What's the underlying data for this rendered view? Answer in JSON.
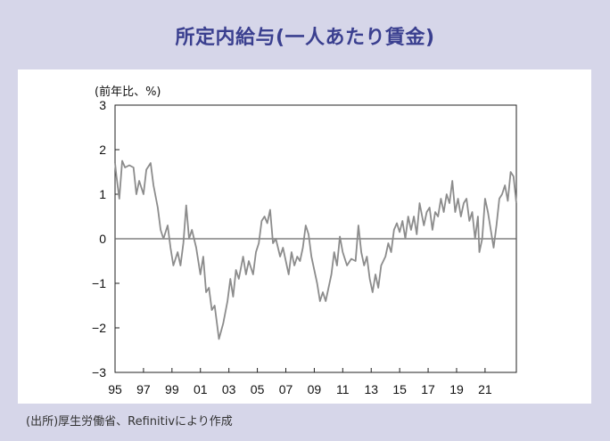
{
  "title": "所定内給与(一人あたり賃金)",
  "source": "(出所)厚生労働省、Refinitivにより作成",
  "chart_data": {
    "type": "line",
    "ylabel": "(前年比、%)",
    "ylim": [
      -3,
      3
    ],
    "yticks": [
      "3",
      "2",
      "1",
      "0",
      "-1",
      "-2",
      "-3"
    ],
    "xlim": [
      1995.0,
      2023.2
    ],
    "xtick_labels": [
      "95",
      "97",
      "99",
      "01",
      "03",
      "05",
      "07",
      "09",
      "11",
      "13",
      "15",
      "17",
      "19",
      "21"
    ],
    "grid": false,
    "zero_line": true,
    "series": [
      {
        "color": "#8c8c8c",
        "points": [
          [
            1995.0,
            1.7
          ],
          [
            1995.1,
            1.4
          ],
          [
            1995.3,
            0.9
          ],
          [
            1995.5,
            1.75
          ],
          [
            1995.7,
            1.6
          ],
          [
            1996.0,
            1.65
          ],
          [
            1996.3,
            1.6
          ],
          [
            1996.5,
            1.0
          ],
          [
            1996.7,
            1.3
          ],
          [
            1997.0,
            1.0
          ],
          [
            1997.2,
            1.55
          ],
          [
            1997.5,
            1.7
          ],
          [
            1997.7,
            1.2
          ],
          [
            1998.0,
            0.7
          ],
          [
            1998.2,
            0.2
          ],
          [
            1998.4,
            0.0
          ],
          [
            1998.7,
            0.3
          ],
          [
            1998.9,
            -0.2
          ],
          [
            1999.1,
            -0.6
          ],
          [
            1999.4,
            -0.3
          ],
          [
            1999.6,
            -0.6
          ],
          [
            1999.8,
            -0.1
          ],
          [
            2000.0,
            0.75
          ],
          [
            2000.2,
            0.0
          ],
          [
            2000.4,
            0.2
          ],
          [
            2000.7,
            -0.2
          ],
          [
            2001.0,
            -0.8
          ],
          [
            2001.2,
            -0.4
          ],
          [
            2001.4,
            -1.2
          ],
          [
            2001.6,
            -1.1
          ],
          [
            2001.8,
            -1.6
          ],
          [
            2002.0,
            -1.5
          ],
          [
            2002.3,
            -2.25
          ],
          [
            2002.6,
            -1.9
          ],
          [
            2002.9,
            -1.4
          ],
          [
            2003.1,
            -0.9
          ],
          [
            2003.3,
            -1.3
          ],
          [
            2003.5,
            -0.7
          ],
          [
            2003.7,
            -0.9
          ],
          [
            2004.0,
            -0.4
          ],
          [
            2004.2,
            -0.8
          ],
          [
            2004.4,
            -0.5
          ],
          [
            2004.7,
            -0.8
          ],
          [
            2004.9,
            -0.3
          ],
          [
            2005.1,
            -0.1
          ],
          [
            2005.3,
            0.4
          ],
          [
            2005.5,
            0.5
          ],
          [
            2005.7,
            0.35
          ],
          [
            2005.9,
            0.65
          ],
          [
            2006.1,
            -0.1
          ],
          [
            2006.3,
            0.0
          ],
          [
            2006.6,
            -0.4
          ],
          [
            2006.8,
            -0.2
          ],
          [
            2007.0,
            -0.5
          ],
          [
            2007.2,
            -0.8
          ],
          [
            2007.4,
            -0.3
          ],
          [
            2007.6,
            -0.6
          ],
          [
            2007.8,
            -0.4
          ],
          [
            2008.0,
            -0.5
          ],
          [
            2008.2,
            -0.2
          ],
          [
            2008.4,
            0.3
          ],
          [
            2008.6,
            0.1
          ],
          [
            2008.8,
            -0.4
          ],
          [
            2009.0,
            -0.7
          ],
          [
            2009.2,
            -1.0
          ],
          [
            2009.4,
            -1.4
          ],
          [
            2009.6,
            -1.2
          ],
          [
            2009.8,
            -1.4
          ],
          [
            2010.0,
            -1.1
          ],
          [
            2010.2,
            -0.8
          ],
          [
            2010.4,
            -0.3
          ],
          [
            2010.6,
            -0.6
          ],
          [
            2010.8,
            0.05
          ],
          [
            2011.0,
            -0.3
          ],
          [
            2011.3,
            -0.6
          ],
          [
            2011.6,
            -0.45
          ],
          [
            2011.9,
            -0.5
          ],
          [
            2012.1,
            0.3
          ],
          [
            2012.3,
            -0.3
          ],
          [
            2012.5,
            -0.6
          ],
          [
            2012.7,
            -0.4
          ],
          [
            2012.9,
            -0.9
          ],
          [
            2013.1,
            -1.2
          ],
          [
            2013.3,
            -0.8
          ],
          [
            2013.5,
            -1.1
          ],
          [
            2013.7,
            -0.6
          ],
          [
            2014.0,
            -0.4
          ],
          [
            2014.2,
            -0.1
          ],
          [
            2014.4,
            -0.3
          ],
          [
            2014.6,
            0.2
          ],
          [
            2014.8,
            0.35
          ],
          [
            2015.0,
            0.15
          ],
          [
            2015.2,
            0.4
          ],
          [
            2015.4,
            0.0
          ],
          [
            2015.6,
            0.5
          ],
          [
            2015.8,
            0.2
          ],
          [
            2016.0,
            0.5
          ],
          [
            2016.2,
            0.1
          ],
          [
            2016.4,
            0.8
          ],
          [
            2016.7,
            0.3
          ],
          [
            2016.9,
            0.6
          ],
          [
            2017.1,
            0.7
          ],
          [
            2017.3,
            0.2
          ],
          [
            2017.5,
            0.6
          ],
          [
            2017.7,
            0.5
          ],
          [
            2017.9,
            0.9
          ],
          [
            2018.1,
            0.6
          ],
          [
            2018.3,
            1.0
          ],
          [
            2018.5,
            0.8
          ],
          [
            2018.7,
            1.3
          ],
          [
            2018.9,
            0.6
          ],
          [
            2019.1,
            0.9
          ],
          [
            2019.3,
            0.5
          ],
          [
            2019.5,
            0.8
          ],
          [
            2019.7,
            0.9
          ],
          [
            2019.9,
            0.4
          ],
          [
            2020.1,
            0.6
          ],
          [
            2020.3,
            0.0
          ],
          [
            2020.5,
            0.5
          ],
          [
            2020.6,
            -0.3
          ],
          [
            2020.8,
            0.0
          ],
          [
            2021.0,
            0.9
          ],
          [
            2021.2,
            0.6
          ],
          [
            2021.4,
            0.2
          ],
          [
            2021.6,
            -0.2
          ],
          [
            2021.8,
            0.3
          ],
          [
            2022.0,
            0.9
          ],
          [
            2022.2,
            1.0
          ],
          [
            2022.4,
            1.2
          ],
          [
            2022.6,
            0.85
          ],
          [
            2022.8,
            1.5
          ],
          [
            2023.0,
            1.4
          ],
          [
            2023.2,
            0.8
          ]
        ]
      }
    ]
  }
}
